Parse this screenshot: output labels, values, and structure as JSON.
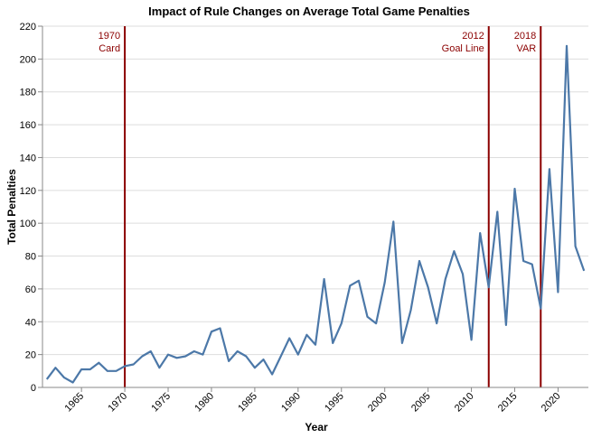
{
  "chart_data": {
    "type": "line",
    "title": "Impact of Rule Changes on Average Total Game Penalties",
    "xlabel": "Year",
    "ylabel": "Total Penalties",
    "xlim": [
      1960.5,
      2023.5
    ],
    "ylim": [
      0,
      220
    ],
    "x_ticks": [
      1965,
      1970,
      1975,
      1980,
      1985,
      1990,
      1995,
      2000,
      2005,
      2010,
      2015,
      2020
    ],
    "y_ticks": [
      0,
      20,
      40,
      60,
      80,
      100,
      120,
      140,
      160,
      180,
      200,
      220
    ],
    "grid": true,
    "line_color": "#4c78a8",
    "annotation_color": "#8b0000",
    "series": [
      {
        "x": [
          1961,
          1962,
          1963,
          1964,
          1965,
          1966,
          1967,
          1968,
          1969,
          1970,
          1971,
          1972,
          1973,
          1974,
          1975,
          1976,
          1977,
          1978,
          1979,
          1980,
          1981,
          1982,
          1983,
          1984,
          1985,
          1986,
          1987,
          1988,
          1989,
          1990,
          1991,
          1992,
          1993,
          1994,
          1995,
          1996,
          1997,
          1998,
          1999,
          2000,
          2001,
          2002,
          2003,
          2004,
          2005,
          2006,
          2007,
          2008,
          2009,
          2010,
          2011,
          2012,
          2013,
          2014,
          2015,
          2016,
          2017,
          2018,
          2019,
          2020,
          2021,
          2022,
          2023
        ],
        "y": [
          5,
          12,
          6,
          3,
          11,
          11,
          15,
          10,
          10,
          13,
          14,
          19,
          22,
          12,
          20,
          18,
          19,
          22,
          20,
          34,
          36,
          16,
          22,
          19,
          12,
          17,
          8,
          19,
          30,
          20,
          32,
          26,
          66,
          27,
          39,
          62,
          65,
          43,
          39,
          64,
          101,
          27,
          47,
          77,
          61,
          39,
          66,
          83,
          69,
          29,
          94,
          61,
          107,
          38,
          121,
          77,
          75,
          48,
          133,
          58,
          208,
          86,
          71
        ]
      }
    ],
    "annotations": [
      {
        "x": 1970,
        "year_label": "1970",
        "text": "Card"
      },
      {
        "x": 2012,
        "year_label": "2012",
        "text": "Goal Line"
      },
      {
        "x": 2018,
        "year_label": "2018",
        "text": "VAR"
      }
    ]
  }
}
